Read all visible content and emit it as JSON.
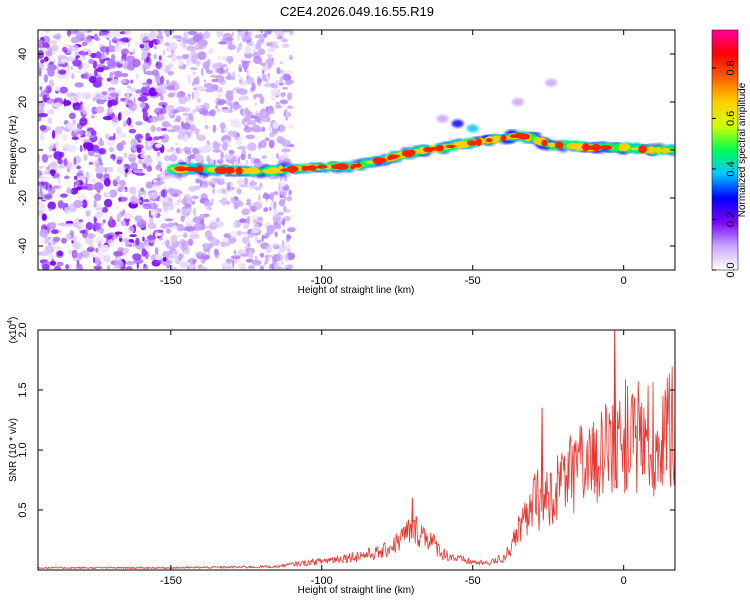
{
  "title": "C2E4.2026.049.16.55.R19",
  "chart_data": [
    {
      "type": "heatmap",
      "title": "C2E4.2026.049.16.55.R19",
      "xlabel": "Height of straight line (km)",
      "ylabel": "Frequency (Hz)",
      "xlim": [
        -194,
        17
      ],
      "ylim": [
        -50,
        50
      ],
      "xticks": [
        -150,
        -100,
        -50,
        0
      ],
      "xtick_labels": [
        "-150",
        "-100",
        "-50",
        "0"
      ],
      "yticks": [
        -40,
        -20,
        0,
        20,
        40
      ],
      "ytick_labels": [
        "-40",
        "-20",
        "0",
        "20",
        "40"
      ],
      "ridge": {
        "x": [
          -150,
          -140,
          -130,
          -120,
          -110,
          -100,
          -90,
          -80,
          -70,
          -60,
          -50,
          -40,
          -35,
          -30,
          -25,
          -20,
          -10,
          0,
          10,
          17
        ],
        "y": [
          -8,
          -8,
          -8.5,
          -9,
          -8,
          -7,
          -7,
          -4,
          -1,
          1,
          3,
          5,
          6,
          5,
          2,
          2,
          1,
          1,
          0,
          0
        ]
      },
      "noise_region_x": [
        -194,
        -110
      ],
      "colorbar": {
        "label": "Normalized spectral amplitude",
        "range": [
          0,
          0.95
        ],
        "ticks": [
          0.0,
          0.2,
          0.4,
          0.6,
          0.8
        ],
        "tick_labels": [
          "0.0",
          "0.2",
          "0.4",
          "0.6",
          "0.8"
        ],
        "colors": [
          "#ffffff",
          "#c9a6ff",
          "#7a00ff",
          "#0000ff",
          "#00c8ff",
          "#00ff50",
          "#d0ff00",
          "#ffd000",
          "#ff6000",
          "#ff0000",
          "#ff00a0"
        ]
      }
    },
    {
      "type": "line",
      "xlabel": "Height of straight line (km)",
      "ylabel": "SNR (10 * v/v)",
      "yscale_label": "(x10",
      "yscale_exp": "4",
      "yscale_close": ")",
      "xlim": [
        -194,
        17
      ],
      "ylim": [
        0,
        2.0
      ],
      "xticks": [
        -150,
        -100,
        -50,
        0
      ],
      "xtick_labels": [
        "-150",
        "-100",
        "-50",
        "0"
      ],
      "yticks": [
        0.5,
        1.0,
        1.5,
        2.0
      ],
      "ytick_labels": [
        "0.5",
        "1.0",
        "1.5",
        "2.0"
      ],
      "color": "#e8362e",
      "envelope": {
        "x": [
          -194,
          -150,
          -115,
          -110,
          -100,
          -90,
          -80,
          -75,
          -70,
          -65,
          -60,
          -55,
          -50,
          -45,
          -40,
          -35,
          -30,
          -25,
          -20,
          -15,
          -10,
          -5,
          0,
          5,
          10,
          17
        ],
        "y": [
          0.02,
          0.02,
          0.03,
          0.05,
          0.08,
          0.12,
          0.16,
          0.25,
          0.38,
          0.3,
          0.15,
          0.1,
          0.07,
          0.06,
          0.1,
          0.3,
          0.55,
          0.65,
          0.8,
          0.85,
          0.95,
          1.05,
          1.1,
          1.15,
          1.1,
          1.2
        ]
      },
      "peaks": [
        {
          "x": -70,
          "y": 0.6
        },
        {
          "x": -27,
          "y": 1.35
        },
        {
          "x": -3,
          "y": 2.0
        },
        {
          "x": 13,
          "y": 1.45
        }
      ]
    }
  ]
}
